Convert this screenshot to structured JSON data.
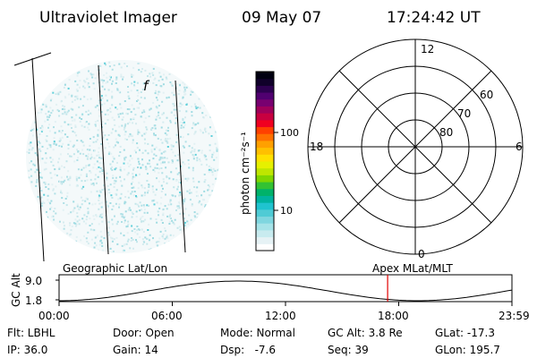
{
  "header": {
    "instrument": "Ultraviolet Imager",
    "date": "09 May 07",
    "time": "17:24:42 UT"
  },
  "image_panel": {
    "pole_marker": "f"
  },
  "colorbar": {
    "label": "photon cm⁻²s⁻¹",
    "ticks": [
      "100",
      "10"
    ],
    "colors": [
      "#ffffff",
      "#e6f2f5",
      "#c8ebef",
      "#a6e3e8",
      "#7fd6df",
      "#4fcbd5",
      "#1fc3cf",
      "#00b3a0",
      "#00b26a",
      "#33c233",
      "#80d600",
      "#bfe600",
      "#e6f000",
      "#ffe000",
      "#ffc000",
      "#ffa000",
      "#ff7000",
      "#ff4000",
      "#f00020",
      "#c80040",
      "#a0005a",
      "#780070",
      "#500070",
      "#2d0050",
      "#10002a",
      "#000010"
    ]
  },
  "polar_plot": {
    "mlt_labels": [
      "12",
      "6",
      "0",
      "18"
    ],
    "lat_labels": [
      "60",
      "70",
      "80"
    ]
  },
  "timeline": {
    "left_title": "Geographic Lat/Lon",
    "right_title": "Apex MLat/MLT",
    "y_axis_label": "GC Alt",
    "y_top": "9.0",
    "y_bottom": "1.8",
    "x_ticks": [
      "00:00",
      "06:00",
      "12:00",
      "18:00",
      "23:59"
    ],
    "current_marker_hours": 17.41
  },
  "info": {
    "flt": "Flt: LBHL",
    "ip": "IP: 36.0",
    "door": "Door: Open",
    "gain": "Gain: 14",
    "mode": "Mode: Normal",
    "dsp": "Dsp:   -7.6",
    "gcalt": "GC Alt: 3.8 Re",
    "seq": "Seq: 39",
    "glat": "GLat: -17.3",
    "glon": "GLon: 195.7"
  }
}
